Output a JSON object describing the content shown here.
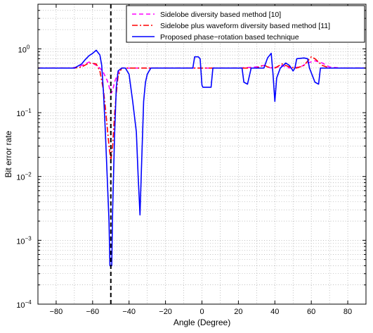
{
  "chart_data": {
    "type": "line",
    "title": "",
    "xlabel": "Angle (Degree)",
    "ylabel": "Bit error rate",
    "xlim": [
      -90,
      90
    ],
    "ylim": [
      0.0001,
      5
    ],
    "yscale": "log",
    "grid": true,
    "legend_position": "top-right",
    "x_ticks": [
      -80,
      -60,
      -40,
      -20,
      0,
      20,
      40,
      60,
      80
    ],
    "x_tick_labels": [
      "−80",
      "−60",
      "−40",
      "−20",
      "0",
      "20",
      "40",
      "60",
      "80"
    ],
    "y_ticks": [
      0.0001,
      0.001,
      0.01,
      0.1,
      1
    ],
    "y_tick_labels": [
      {
        "base": "10",
        "exp": "−4"
      },
      {
        "base": "10",
        "exp": "−3"
      },
      {
        "base": "10",
        "exp": "−2"
      },
      {
        "base": "10",
        "exp": "−1"
      },
      {
        "base": "10",
        "exp": "0"
      }
    ],
    "annotations": [
      {
        "type": "vertical-dashed-line",
        "x": -50,
        "color": "#000000"
      }
    ],
    "series": [
      {
        "name": "Sidelobe diversity based method [10]",
        "color": "#ff00ff",
        "style": "dashed",
        "points": [
          [
            -90,
            0.5
          ],
          [
            -80,
            0.5
          ],
          [
            -72,
            0.5
          ],
          [
            -68,
            0.52
          ],
          [
            -64,
            0.58
          ],
          [
            -62,
            0.62
          ],
          [
            -60,
            0.6
          ],
          [
            -58,
            0.55
          ],
          [
            -56,
            0.5
          ],
          [
            -54,
            0.42
          ],
          [
            -52,
            0.32
          ],
          [
            -51,
            0.26
          ],
          [
            -50,
            0.2
          ],
          [
            -49,
            0.22
          ],
          [
            -48,
            0.3
          ],
          [
            -46,
            0.42
          ],
          [
            -44,
            0.5
          ],
          [
            -42,
            0.5
          ],
          [
            -30,
            0.5
          ],
          [
            -10,
            0.5
          ],
          [
            0,
            0.5
          ],
          [
            20,
            0.5
          ],
          [
            30,
            0.52
          ],
          [
            34,
            0.55
          ],
          [
            36,
            0.52
          ],
          [
            38,
            0.5
          ],
          [
            42,
            0.52
          ],
          [
            44,
            0.55
          ],
          [
            46,
            0.52
          ],
          [
            48,
            0.5
          ],
          [
            54,
            0.52
          ],
          [
            58,
            0.6
          ],
          [
            62,
            0.65
          ],
          [
            66,
            0.6
          ],
          [
            70,
            0.52
          ],
          [
            76,
            0.5
          ],
          [
            90,
            0.5
          ]
        ]
      },
      {
        "name": "Sidelobe plus waveform diversity based method [11]",
        "color": "#ff0000",
        "style": "dashdot",
        "points": [
          [
            -90,
            0.5
          ],
          [
            -80,
            0.5
          ],
          [
            -70,
            0.5
          ],
          [
            -66,
            0.52
          ],
          [
            -62,
            0.6
          ],
          [
            -58,
            0.58
          ],
          [
            -56,
            0.45
          ],
          [
            -54,
            0.22
          ],
          [
            -53,
            0.12
          ],
          [
            -52,
            0.06
          ],
          [
            -51,
            0.03
          ],
          [
            -50,
            0.018
          ],
          [
            -49,
            0.03
          ],
          [
            -48,
            0.09
          ],
          [
            -47,
            0.2
          ],
          [
            -46,
            0.38
          ],
          [
            -44,
            0.5
          ],
          [
            -40,
            0.5
          ],
          [
            -20,
            0.5
          ],
          [
            0,
            0.5
          ],
          [
            20,
            0.5
          ],
          [
            30,
            0.5
          ],
          [
            34,
            0.56
          ],
          [
            36,
            0.52
          ],
          [
            40,
            0.5
          ],
          [
            44,
            0.58
          ],
          [
            48,
            0.52
          ],
          [
            52,
            0.5
          ],
          [
            56,
            0.55
          ],
          [
            60,
            0.75
          ],
          [
            62,
            0.7
          ],
          [
            66,
            0.55
          ],
          [
            70,
            0.5
          ],
          [
            90,
            0.5
          ]
        ]
      },
      {
        "name": "Proposed phase−rotation based technique",
        "color": "#0000ff",
        "style": "solid",
        "points": [
          [
            -90,
            0.5
          ],
          [
            -70,
            0.5
          ],
          [
            -66,
            0.58
          ],
          [
            -64,
            0.68
          ],
          [
            -62,
            0.78
          ],
          [
            -60,
            0.85
          ],
          [
            -58,
            0.95
          ],
          [
            -56,
            0.8
          ],
          [
            -55,
            0.55
          ],
          [
            -54,
            0.2
          ],
          [
            -53,
            0.05
          ],
          [
            -52,
            0.01
          ],
          [
            -51,
            0.002
          ],
          [
            -50.5,
            0.0004
          ],
          [
            -49.5,
            0.0004
          ],
          [
            -49,
            0.003
          ],
          [
            -48,
            0.04
          ],
          [
            -47,
            0.25
          ],
          [
            -46,
            0.45
          ],
          [
            -44,
            0.5
          ],
          [
            -42,
            0.5
          ],
          [
            -40,
            0.4
          ],
          [
            -38,
            0.15
          ],
          [
            -36,
            0.05
          ],
          [
            -35,
            0.01
          ],
          [
            -34,
            0.0025
          ],
          [
            -33,
            0.02
          ],
          [
            -32,
            0.15
          ],
          [
            -31,
            0.3
          ],
          [
            -30,
            0.4
          ],
          [
            -29,
            0.45
          ],
          [
            -28,
            0.5
          ],
          [
            -10,
            0.5
          ],
          [
            -5,
            0.5
          ],
          [
            -4,
            0.75
          ],
          [
            -2,
            0.75
          ],
          [
            -1,
            0.7
          ],
          [
            0,
            0.27
          ],
          [
            0.5,
            0.25
          ],
          [
            5,
            0.25
          ],
          [
            6,
            0.5
          ],
          [
            22,
            0.5
          ],
          [
            23,
            0.3
          ],
          [
            25,
            0.28
          ],
          [
            27,
            0.5
          ],
          [
            34,
            0.5
          ],
          [
            36,
            0.72
          ],
          [
            38,
            0.85
          ],
          [
            39,
            0.4
          ],
          [
            40,
            0.15
          ],
          [
            41,
            0.35
          ],
          [
            43,
            0.5
          ],
          [
            46,
            0.6
          ],
          [
            48,
            0.55
          ],
          [
            49,
            0.5
          ],
          [
            50,
            0.45
          ],
          [
            51,
            0.5
          ],
          [
            52,
            0.7
          ],
          [
            56,
            0.72
          ],
          [
            58,
            0.7
          ],
          [
            59,
            0.5
          ],
          [
            62,
            0.3
          ],
          [
            64,
            0.28
          ],
          [
            65,
            0.5
          ],
          [
            90,
            0.5
          ]
        ]
      }
    ]
  }
}
